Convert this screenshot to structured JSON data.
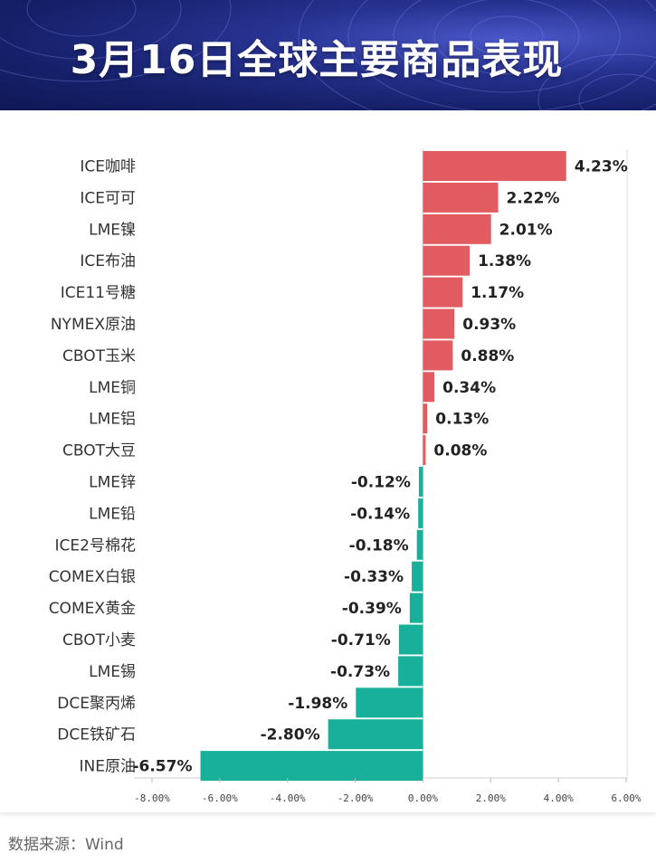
{
  "title": "3月16日全球主要商品表现",
  "source": "数据来源：Wind",
  "colors": {
    "positive": "#e15b60",
    "negative": "#18b09a",
    "header_dark": "#16206a",
    "header_light": "#4b57c8"
  },
  "chart_data": {
    "type": "bar",
    "orientation": "horizontal",
    "categories": [
      "ICE咖啡",
      "ICE可可",
      "LME镍",
      "ICE布油",
      "ICE11号糖",
      "NYMEX原油",
      "CBOT玉米",
      "LME铜",
      "LME铝",
      "CBOT大豆",
      "LME锌",
      "LME铅",
      "ICE2号棉花",
      "COMEX白银",
      "COMEX黄金",
      "CBOT小麦",
      "LME锡",
      "DCE聚丙烯",
      "DCE铁矿石",
      "INE原油"
    ],
    "values": [
      4.23,
      2.22,
      2.01,
      1.38,
      1.17,
      0.93,
      0.88,
      0.34,
      0.13,
      0.08,
      -0.12,
      -0.14,
      -0.18,
      -0.33,
      -0.39,
      -0.71,
      -0.73,
      -1.98,
      -2.8,
      -6.57
    ],
    "value_labels": [
      "4.23%",
      "2.22%",
      "2.01%",
      "1.38%",
      "1.17%",
      "0.93%",
      "0.88%",
      "0.34%",
      "0.13%",
      "0.08%",
      "-0.12%",
      "-0.14%",
      "-0.18%",
      "-0.33%",
      "-0.39%",
      "-0.71%",
      "-0.73%",
      "-1.98%",
      "-2.80%",
      "-6.57%"
    ],
    "xlim": [
      -8,
      6
    ],
    "xticks": [
      -8,
      -6,
      -4,
      -2,
      0,
      2,
      4,
      6
    ],
    "xtick_labels": [
      "-8.00%",
      "-6.00%",
      "-4.00%",
      "-2.00%",
      "0.00%",
      "2.00%",
      "4.00%",
      "6.00%"
    ],
    "xlabel": "",
    "ylabel": "",
    "grid": false,
    "legend": "none"
  }
}
